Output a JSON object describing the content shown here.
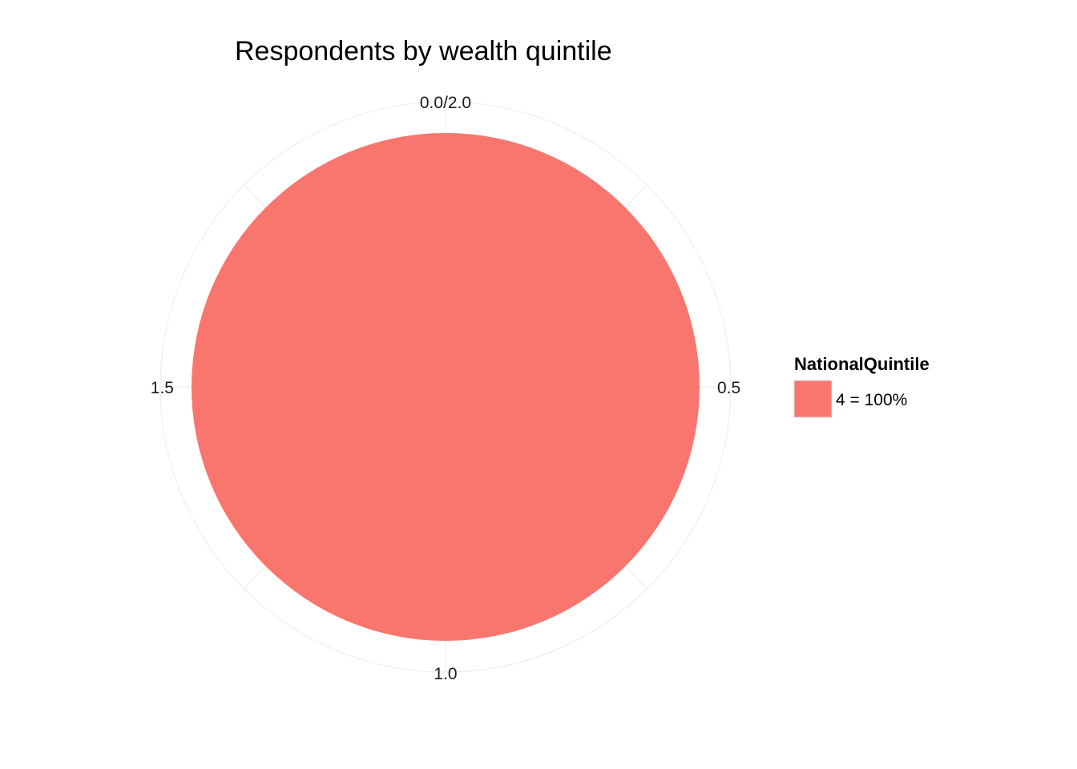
{
  "chart_data": {
    "type": "pie",
    "title": "Respondents by wealth quintile",
    "categories": [
      "4"
    ],
    "values": [
      1.0
    ],
    "slices": [
      {
        "category": "4",
        "value": 1.0,
        "label": "4 = 100%",
        "color": "#F8766D"
      }
    ],
    "theta_axis": {
      "ticks": [
        "0.0/2.0",
        "0.5",
        "1.0",
        "1.5"
      ]
    },
    "legend": {
      "title": "NationalQuintile",
      "placement": "right",
      "entries": [
        "4 = 100%"
      ]
    },
    "grid": true,
    "grid_color": "#ebebeb"
  }
}
